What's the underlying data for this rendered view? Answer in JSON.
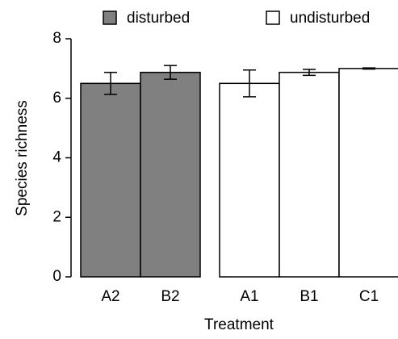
{
  "chart_data": {
    "type": "bar",
    "categories": [
      "A2",
      "B2",
      "A1",
      "B1",
      "C1"
    ],
    "series": [
      {
        "name": "disturbed",
        "color": "#808080",
        "values": [
          6.5,
          6.87,
          null,
          null,
          null
        ],
        "errors": [
          0.37,
          0.23,
          null,
          null,
          null
        ]
      },
      {
        "name": "undisturbed",
        "color": "#ffffff",
        "values": [
          null,
          null,
          6.5,
          6.87,
          7.0
        ],
        "errors": [
          null,
          null,
          0.45,
          0.1,
          0.02
        ]
      }
    ],
    "ylabel": "Species richness",
    "xlabel": "Treatment",
    "ylim": [
      0,
      8
    ],
    "yticks": [
      0,
      2,
      4,
      6,
      8
    ],
    "grid": false
  }
}
